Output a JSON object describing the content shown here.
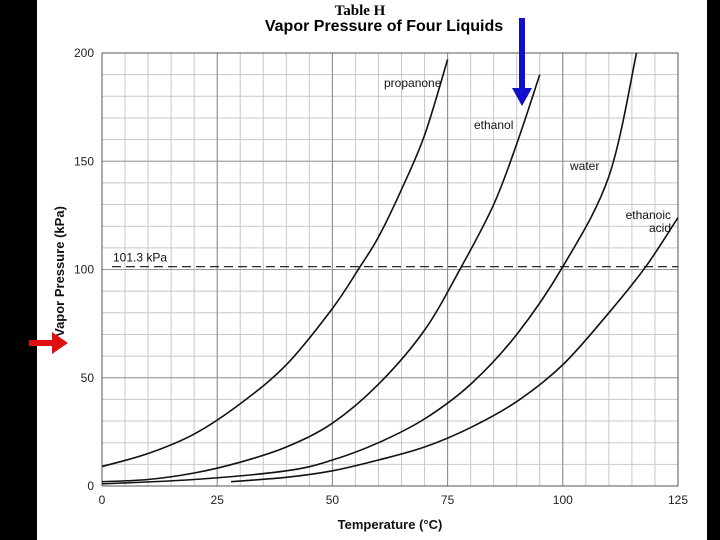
{
  "header": {
    "table_label": "Table H",
    "title": "Vapor Pressure of Four Liquids"
  },
  "chart_data": {
    "type": "line",
    "title": "Vapor Pressure of Four Liquids",
    "xlabel": "Temperature (°C)",
    "ylabel": "Vapor Pressure (kPa)",
    "xlim": [
      0,
      125
    ],
    "ylim": [
      0,
      200
    ],
    "x_ticks": [
      0,
      25,
      50,
      75,
      100,
      125
    ],
    "y_ticks": [
      0,
      50,
      100,
      150,
      200
    ],
    "grid": true,
    "reference_line": {
      "y": 101.3,
      "label": "101.3 kPa",
      "style": "dashed"
    },
    "series": [
      {
        "name": "propanone",
        "label_lines": [
          "propanone"
        ],
        "x": [
          0,
          10,
          20,
          30,
          40,
          50,
          56,
          60,
          65,
          70,
          75
        ],
        "y": [
          9,
          15,
          24,
          38,
          56,
          82,
          101.3,
          115,
          137,
          162,
          197
        ]
      },
      {
        "name": "ethanol",
        "label_lines": [
          "ethanol"
        ],
        "x": [
          0,
          10,
          20,
          30,
          40,
          50,
          60,
          70,
          78,
          85,
          90,
          95
        ],
        "y": [
          2,
          3,
          6,
          11,
          18,
          29,
          47,
          72,
          101.3,
          130,
          158,
          190
        ]
      },
      {
        "name": "water",
        "label_lines": [
          "water"
        ],
        "x": [
          0,
          20,
          40,
          50,
          60,
          70,
          80,
          90,
          100,
          110,
          116
        ],
        "y": [
          1,
          3,
          7,
          12,
          20,
          31,
          47,
          70,
          101.3,
          143,
          200
        ]
      },
      {
        "name": "ethanoic acid",
        "label_lines": [
          "ethanoic",
          "acid"
        ],
        "x": [
          28,
          40,
          50,
          60,
          70,
          80,
          90,
          100,
          110,
          118,
          125
        ],
        "y": [
          2,
          4,
          7,
          12,
          18,
          27,
          39,
          56,
          80,
          101.3,
          124
        ]
      }
    ]
  },
  "annotations": {
    "down_arrow_color": "#1010cc",
    "right_arrow_color": "#e01010"
  }
}
